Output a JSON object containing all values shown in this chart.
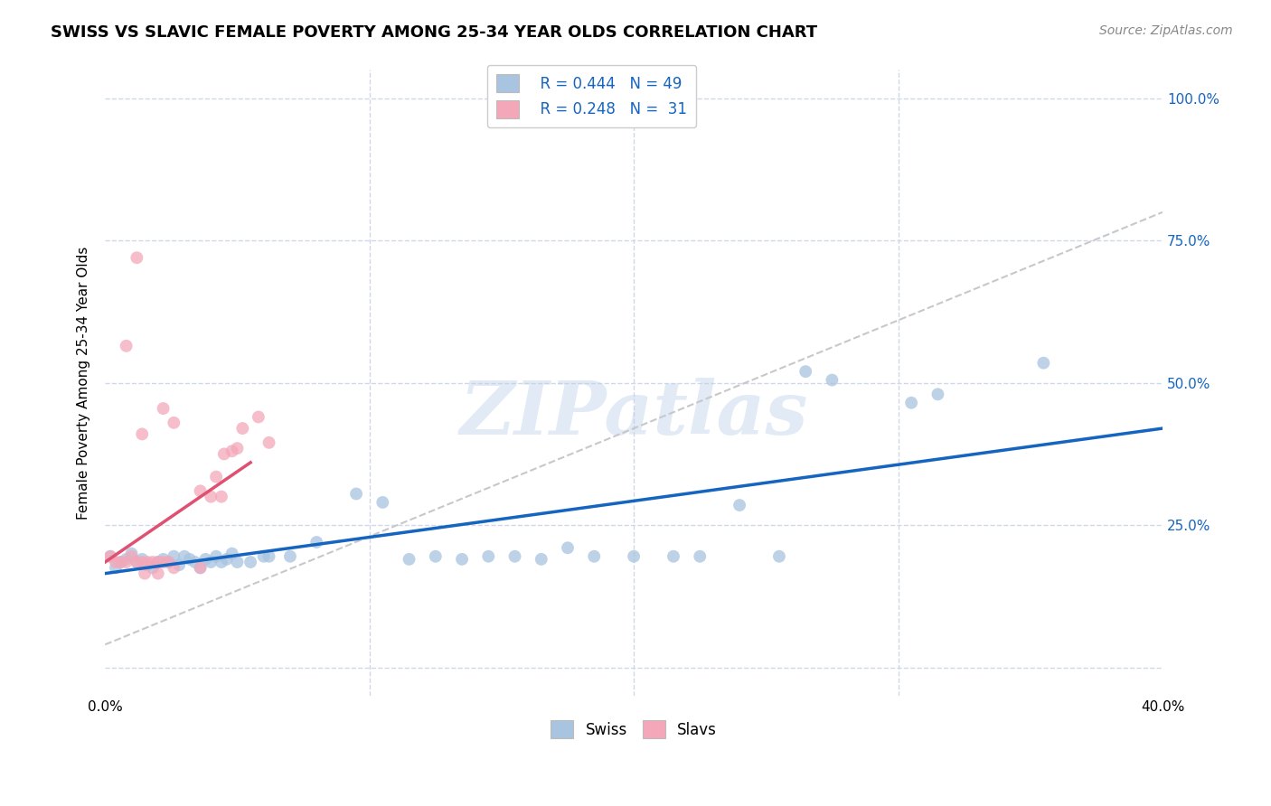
{
  "title": "SWISS VS SLAVIC FEMALE POVERTY AMONG 25-34 YEAR OLDS CORRELATION CHART",
  "source": "Source: ZipAtlas.com",
  "ylabel": "Female Poverty Among 25-34 Year Olds",
  "xlim": [
    0.0,
    0.4
  ],
  "ylim": [
    -0.05,
    1.05
  ],
  "xticks": [
    0.0,
    0.1,
    0.2,
    0.3,
    0.4
  ],
  "xticklabels": [
    "0.0%",
    "",
    "",
    "",
    "40.0%"
  ],
  "yticks": [
    0.0,
    0.25,
    0.5,
    0.75,
    1.0
  ],
  "yticklabels": [
    "",
    "25.0%",
    "50.0%",
    "75.0%",
    "100.0%"
  ],
  "swiss_color": "#a8c4e0",
  "slavs_color": "#f4a7b9",
  "swiss_line_color": "#1565c0",
  "slavs_line_color": "#e05070",
  "dashed_line_color": "#c8c8cc",
  "watermark": "ZIPatlas",
  "swiss_points": [
    [
      0.002,
      0.195
    ],
    [
      0.004,
      0.175
    ],
    [
      0.006,
      0.185
    ],
    [
      0.008,
      0.19
    ],
    [
      0.01,
      0.2
    ],
    [
      0.012,
      0.185
    ],
    [
      0.014,
      0.19
    ],
    [
      0.016,
      0.18
    ],
    [
      0.018,
      0.175
    ],
    [
      0.02,
      0.185
    ],
    [
      0.022,
      0.19
    ],
    [
      0.024,
      0.185
    ],
    [
      0.026,
      0.195
    ],
    [
      0.028,
      0.18
    ],
    [
      0.03,
      0.195
    ],
    [
      0.032,
      0.19
    ],
    [
      0.034,
      0.185
    ],
    [
      0.036,
      0.175
    ],
    [
      0.038,
      0.19
    ],
    [
      0.04,
      0.185
    ],
    [
      0.042,
      0.195
    ],
    [
      0.044,
      0.185
    ],
    [
      0.046,
      0.19
    ],
    [
      0.048,
      0.2
    ],
    [
      0.05,
      0.185
    ],
    [
      0.055,
      0.185
    ],
    [
      0.06,
      0.195
    ],
    [
      0.062,
      0.195
    ],
    [
      0.07,
      0.195
    ],
    [
      0.08,
      0.22
    ],
    [
      0.095,
      0.305
    ],
    [
      0.105,
      0.29
    ],
    [
      0.115,
      0.19
    ],
    [
      0.125,
      0.195
    ],
    [
      0.135,
      0.19
    ],
    [
      0.145,
      0.195
    ],
    [
      0.155,
      0.195
    ],
    [
      0.165,
      0.19
    ],
    [
      0.175,
      0.21
    ],
    [
      0.185,
      0.195
    ],
    [
      0.2,
      0.195
    ],
    [
      0.215,
      0.195
    ],
    [
      0.225,
      0.195
    ],
    [
      0.24,
      0.285
    ],
    [
      0.255,
      0.195
    ],
    [
      0.265,
      0.52
    ],
    [
      0.275,
      0.505
    ],
    [
      0.305,
      0.465
    ],
    [
      0.315,
      0.48
    ],
    [
      0.355,
      0.535
    ]
  ],
  "slavs_points": [
    [
      0.002,
      0.195
    ],
    [
      0.004,
      0.185
    ],
    [
      0.006,
      0.185
    ],
    [
      0.008,
      0.185
    ],
    [
      0.01,
      0.195
    ],
    [
      0.012,
      0.185
    ],
    [
      0.014,
      0.185
    ],
    [
      0.016,
      0.185
    ],
    [
      0.018,
      0.185
    ],
    [
      0.02,
      0.185
    ],
    [
      0.022,
      0.185
    ],
    [
      0.024,
      0.185
    ],
    [
      0.014,
      0.41
    ],
    [
      0.022,
      0.455
    ],
    [
      0.026,
      0.43
    ],
    [
      0.008,
      0.565
    ],
    [
      0.012,
      0.72
    ],
    [
      0.036,
      0.31
    ],
    [
      0.04,
      0.3
    ],
    [
      0.042,
      0.335
    ],
    [
      0.044,
      0.3
    ],
    [
      0.048,
      0.38
    ],
    [
      0.052,
      0.42
    ],
    [
      0.058,
      0.44
    ],
    [
      0.062,
      0.395
    ],
    [
      0.026,
      0.175
    ],
    [
      0.036,
      0.175
    ],
    [
      0.015,
      0.165
    ],
    [
      0.02,
      0.165
    ],
    [
      0.045,
      0.375
    ],
    [
      0.05,
      0.385
    ]
  ],
  "swiss_line_x": [
    0.0,
    0.4
  ],
  "swiss_line_y": [
    0.165,
    0.42
  ],
  "slavs_line_x": [
    0.0,
    0.055
  ],
  "slavs_line_y": [
    0.185,
    0.36
  ],
  "dashed_line_x": [
    0.0,
    0.4
  ],
  "dashed_line_y": [
    0.04,
    0.8
  ],
  "background_color": "#ffffff",
  "grid_color": "#d0d8e8",
  "title_fontsize": 13,
  "axis_label_fontsize": 11,
  "tick_fontsize": 11,
  "source_fontsize": 10,
  "legend_fontsize": 12,
  "marker_size": 100
}
